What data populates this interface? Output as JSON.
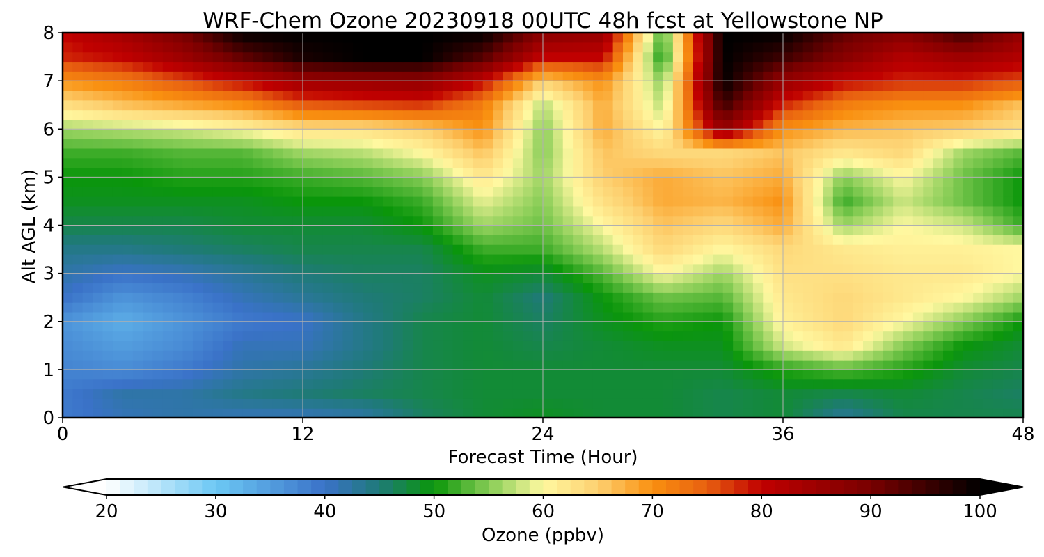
{
  "chart_data": {
    "type": "heatmap",
    "title": "WRF-Chem Ozone  20230918 00UTC 48h fcst at Yellowstone NP",
    "xlabel": "Forecast Time (Hour)",
    "ylabel": "Alt AGL (km)",
    "xlim": [
      0,
      48
    ],
    "ylim": [
      0,
      8
    ],
    "xticks": [
      0,
      12,
      24,
      36,
      48
    ],
    "yticks": [
      0,
      1,
      2,
      3,
      4,
      5,
      6,
      7,
      8
    ],
    "grid": true,
    "colorbar": {
      "label": "Ozone  (ppbv)",
      "min": 20,
      "max": 100,
      "ticks": [
        20,
        30,
        40,
        50,
        60,
        70,
        80,
        90,
        100
      ],
      "extend": "both",
      "colors": {
        "20": "#ffffff",
        "30": "#6cc8f4",
        "40": "#3a72c8",
        "45": "#1f7a78",
        "50": "#0a960a",
        "55": "#86cc55",
        "60": "#fff8a0",
        "65": "#fdd070",
        "70": "#f99010",
        "75": "#e86010",
        "80": "#c00000",
        "90": "#780000",
        "100": "#000000"
      }
    },
    "x": [
      0,
      3,
      6,
      9,
      12,
      15,
      18,
      21,
      24,
      27,
      30,
      33,
      36,
      39,
      42,
      45,
      48
    ],
    "y": [
      0,
      0.5,
      1,
      1.5,
      2,
      2.5,
      3,
      3.5,
      4,
      4.5,
      5,
      5.5,
      6,
      6.5,
      7,
      7.5,
      8
    ],
    "z": [
      [
        39,
        41,
        42,
        41,
        41,
        42,
        46,
        48,
        49,
        48,
        48,
        47,
        48,
        43,
        47,
        47,
        47
      ],
      [
        39,
        42,
        42,
        44,
        45,
        46,
        47,
        48,
        48,
        48,
        48,
        47,
        48,
        47,
        48,
        47,
        46
      ],
      [
        38,
        37,
        39,
        42,
        43,
        45,
        47,
        48,
        48,
        48,
        48,
        48,
        51,
        53,
        51,
        48,
        47
      ],
      [
        37,
        35,
        37,
        41,
        41,
        44,
        47,
        48,
        47,
        48,
        49,
        49,
        58,
        62,
        55,
        50,
        48
      ],
      [
        36,
        33,
        36,
        39,
        40,
        44,
        47,
        48,
        46,
        49,
        51,
        50,
        61,
        64,
        60,
        55,
        50
      ],
      [
        40,
        36,
        38,
        41,
        43,
        45,
        46,
        48,
        45,
        50,
        54,
        53,
        62,
        64,
        62,
        60,
        56
      ],
      [
        42,
        40,
        41,
        43,
        45,
        46,
        46,
        49,
        48,
        53,
        60,
        56,
        63,
        63,
        62,
        62,
        60
      ],
      [
        44,
        44,
        45,
        46,
        47,
        47,
        47,
        52,
        52,
        57,
        64,
        60,
        64,
        62,
        61,
        61,
        60
      ],
      [
        47,
        47,
        47,
        48,
        48,
        48,
        50,
        56,
        54,
        60,
        66,
        64,
        68,
        56,
        60,
        58,
        52
      ],
      [
        49,
        49,
        49,
        49,
        50,
        50,
        52,
        59,
        55,
        63,
        68,
        67,
        70,
        52,
        58,
        54,
        50
      ],
      [
        50,
        50,
        51,
        51,
        52,
        53,
        55,
        62,
        56,
        65,
        68,
        66,
        68,
        55,
        60,
        54,
        50
      ],
      [
        52,
        52,
        53,
        53,
        56,
        57,
        60,
        66,
        55,
        66,
        64,
        64,
        66,
        62,
        64,
        56,
        53
      ],
      [
        56,
        57,
        58,
        60,
        63,
        63,
        65,
        70,
        55,
        68,
        60,
        86,
        70,
        67,
        66,
        65,
        63
      ],
      [
        63,
        66,
        68,
        70,
        75,
        76,
        77,
        72,
        57,
        68,
        57,
        95,
        78,
        72,
        70,
        70,
        66
      ],
      [
        70,
        72,
        76,
        80,
        85,
        86,
        87,
        80,
        65,
        70,
        55,
        100,
        86,
        80,
        78,
        78,
        76
      ],
      [
        78,
        80,
        85,
        92,
        98,
        100,
        100,
        93,
        80,
        80,
        50,
        100,
        95,
        88,
        82,
        85,
        82
      ],
      [
        80,
        84,
        90,
        100,
        100,
        100,
        100,
        100,
        88,
        86,
        52,
        100,
        100,
        92,
        88,
        95,
        86
      ]
    ]
  }
}
